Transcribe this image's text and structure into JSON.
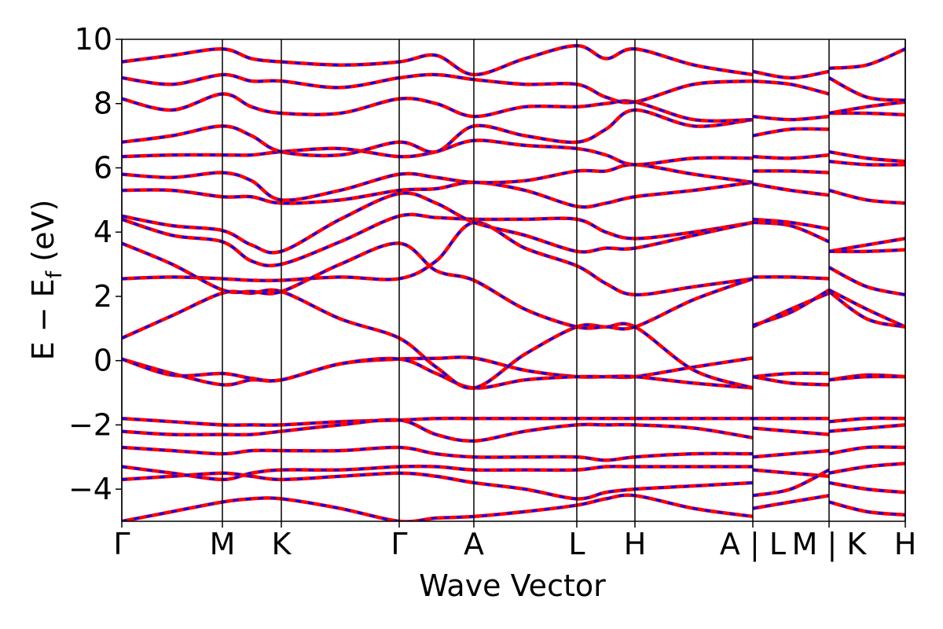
{
  "chart_data": {
    "type": "line",
    "ylabel": [
      "E − E",
      "f",
      " (eV)"
    ],
    "xlabel": "Wave Vector",
    "x": [
      0,
      0.64,
      1.28,
      1.65,
      2.03,
      2.78,
      3.53,
      4.0,
      4.48,
      5.13,
      5.79,
      6.16,
      6.53,
      7.28,
      8.03,
      8.03,
      8.51,
      9.0,
      9.0,
      9.48,
      9.97
    ],
    "xlim": [
      0,
      9.97
    ],
    "xticks": [
      {
        "value": 0,
        "label": "Γ"
      },
      {
        "value": 1.28,
        "label": "M"
      },
      {
        "value": 2.03,
        "label": "K"
      },
      {
        "value": 3.53,
        "label": "Γ"
      },
      {
        "value": 4.48,
        "label": "A"
      },
      {
        "value": 5.79,
        "label": "L"
      },
      {
        "value": 6.53,
        "label": "H"
      },
      {
        "value": 8.03,
        "label": "A | L"
      },
      {
        "value": 9.0,
        "label": "M | K"
      },
      {
        "value": 9.97,
        "label": "H"
      }
    ],
    "ylim": [
      -5,
      10
    ],
    "yticks": [
      {
        "value": -4,
        "label": "−4"
      },
      {
        "value": -2,
        "label": "−2"
      },
      0,
      2,
      4,
      6,
      8,
      10
    ],
    "dash_color": "#0000ff",
    "series": [
      {
        "color": "#ff0000",
        "values": [
          0.05,
          -0.4,
          -0.75,
          -0.6,
          -0.6,
          -0.1,
          0.05,
          0.07,
          0.08,
          -0.3,
          -0.5,
          -0.5,
          -0.5,
          -0.2,
          0.08,
          -0.5,
          -0.4,
          -0.4,
          -0.6,
          -0.45,
          -0.5
        ]
      },
      {
        "color": "#ff0000",
        "values": [
          0.05,
          -0.45,
          -0.4,
          -0.55,
          -0.6,
          -0.1,
          0.05,
          -0.4,
          -0.85,
          -0.6,
          -0.5,
          -0.5,
          -0.5,
          -0.7,
          -0.85,
          -0.5,
          -0.7,
          -0.75,
          -0.6,
          -0.5,
          -0.5
        ]
      },
      {
        "color": "#ff0000",
        "values": [
          0.7,
          1.4,
          2.1,
          2.1,
          2.15,
          1.3,
          0.7,
          -0.2,
          -0.85,
          0.2,
          1.05,
          1.05,
          1.05,
          -0.3,
          -0.85,
          1.05,
          1.6,
          2.1,
          2.15,
          1.3,
          1.05
        ]
      },
      {
        "color": "#ff0000",
        "values": [
          2.55,
          2.6,
          2.55,
          2.5,
          2.5,
          2.6,
          2.55,
          3.1,
          4.3,
          3.5,
          2.95,
          2.4,
          2.05,
          2.3,
          2.55,
          2.6,
          2.6,
          2.55,
          2.9,
          2.3,
          2.05
        ]
      },
      {
        "color": "#ff0000",
        "values": [
          3.65,
          3.0,
          2.2,
          2.15,
          2.15,
          3.0,
          3.65,
          2.8,
          2.5,
          1.6,
          1.05,
          1.05,
          1.05,
          1.9,
          2.55,
          1.1,
          1.5,
          2.2,
          2.2,
          1.6,
          1.05
        ]
      },
      {
        "color": "#ff0000",
        "values": [
          4.4,
          3.9,
          3.7,
          3.1,
          3.0,
          3.7,
          4.5,
          4.45,
          4.4,
          4.4,
          4.4,
          4.0,
          3.8,
          4.0,
          4.3,
          4.3,
          4.2,
          3.7,
          3.4,
          3.6,
          3.8
        ]
      },
      {
        "color": "#ff0000",
        "values": [
          4.5,
          4.2,
          4.05,
          3.6,
          3.4,
          4.4,
          5.2,
          4.9,
          4.3,
          3.9,
          3.4,
          3.5,
          3.5,
          3.9,
          4.3,
          4.4,
          4.3,
          4.1,
          3.4,
          3.4,
          3.45
        ]
      },
      {
        "color": "#ff0000",
        "values": [
          5.3,
          5.3,
          5.1,
          5.1,
          4.9,
          5.0,
          5.3,
          5.35,
          5.55,
          5.3,
          4.8,
          4.9,
          5.1,
          5.3,
          5.55,
          5.5,
          5.3,
          5.15,
          5.3,
          5.0,
          4.9
        ]
      },
      {
        "color": "#ff0000",
        "values": [
          5.8,
          5.7,
          5.85,
          5.6,
          5.0,
          5.3,
          5.8,
          5.7,
          5.55,
          5.6,
          5.9,
          5.9,
          6.1,
          5.8,
          5.55,
          5.9,
          5.9,
          5.85,
          6.2,
          6.1,
          6.1
        ]
      },
      {
        "color": "#ff0000",
        "values": [
          6.35,
          6.4,
          6.4,
          6.4,
          6.5,
          6.6,
          6.35,
          6.5,
          6.85,
          6.7,
          6.6,
          6.4,
          6.1,
          6.3,
          6.3,
          6.35,
          6.3,
          6.4,
          6.5,
          6.3,
          6.2
        ]
      },
      {
        "color": "#ff0000",
        "values": [
          6.8,
          7.0,
          7.3,
          7.0,
          6.5,
          6.4,
          6.8,
          6.5,
          7.3,
          7.0,
          6.8,
          7.2,
          7.8,
          7.3,
          7.5,
          7.0,
          7.2,
          7.2,
          7.7,
          7.7,
          7.65
        ]
      },
      {
        "color": "#ff0000",
        "values": [
          8.15,
          7.8,
          8.3,
          7.9,
          7.7,
          7.7,
          8.15,
          8.0,
          7.6,
          7.9,
          7.9,
          8.0,
          8.05,
          7.5,
          7.5,
          7.6,
          7.5,
          7.6,
          7.7,
          7.9,
          8.05
        ]
      },
      {
        "color": "#ff0000",
        "values": [
          8.8,
          8.6,
          8.9,
          8.7,
          8.7,
          8.5,
          8.8,
          8.9,
          8.75,
          8.6,
          8.6,
          8.2,
          8.05,
          8.6,
          8.7,
          8.7,
          8.6,
          8.3,
          8.8,
          8.2,
          8.1
        ]
      },
      {
        "color": "#ff0000",
        "values": [
          9.3,
          9.5,
          9.7,
          9.4,
          9.3,
          9.2,
          9.3,
          9.5,
          8.9,
          9.4,
          9.8,
          9.4,
          9.7,
          9.2,
          8.9,
          9.0,
          8.8,
          9.0,
          9.1,
          9.2,
          9.7
        ]
      },
      {
        "color": "#ff0000",
        "values": [
          -1.8,
          -1.9,
          -2.0,
          -2.0,
          -2.0,
          -1.9,
          -1.85,
          -1.8,
          -1.8,
          -1.8,
          -1.8,
          -1.8,
          -1.8,
          -1.8,
          -1.8,
          -1.8,
          -1.8,
          -1.8,
          -1.9,
          -1.8,
          -1.8
        ]
      },
      {
        "color": "#ff0000",
        "values": [
          -2.2,
          -2.3,
          -2.3,
          -2.3,
          -2.2,
          -2.0,
          -1.85,
          -2.3,
          -2.5,
          -2.2,
          -2.0,
          -2.0,
          -2.0,
          -2.1,
          -2.4,
          -2.1,
          -2.2,
          -2.3,
          -2.2,
          -2.1,
          -2.0
        ]
      },
      {
        "color": "#ff0000",
        "values": [
          -2.7,
          -2.8,
          -2.9,
          -2.8,
          -2.8,
          -2.8,
          -2.7,
          -2.9,
          -3.0,
          -3.0,
          -3.0,
          -3.1,
          -3.0,
          -2.9,
          -2.9,
          -3.0,
          -2.9,
          -2.8,
          -2.9,
          -2.7,
          -2.7
        ]
      },
      {
        "color": "#ff0000",
        "values": [
          -3.3,
          -3.5,
          -3.7,
          -3.5,
          -3.4,
          -3.4,
          -3.3,
          -3.3,
          -3.4,
          -3.4,
          -3.4,
          -3.3,
          -3.3,
          -3.3,
          -3.3,
          -3.4,
          -3.5,
          -3.6,
          -3.5,
          -3.3,
          -3.2
        ]
      },
      {
        "color": "#ff0000",
        "values": [
          -3.7,
          -3.6,
          -3.5,
          -3.6,
          -3.7,
          -3.6,
          -3.5,
          -3.6,
          -3.8,
          -4.0,
          -4.3,
          -4.1,
          -4.0,
          -3.9,
          -3.8,
          -4.2,
          -4.0,
          -3.4,
          -3.8,
          -4.0,
          -4.1
        ]
      },
      {
        "color": "#ff0000",
        "values": [
          -5.0,
          -4.7,
          -4.4,
          -4.3,
          -4.3,
          -4.6,
          -5.0,
          -4.9,
          -4.85,
          -4.7,
          -4.5,
          -4.3,
          -4.2,
          -4.6,
          -4.85,
          -4.6,
          -4.4,
          -4.2,
          -4.4,
          -4.7,
          -4.8
        ]
      }
    ]
  }
}
